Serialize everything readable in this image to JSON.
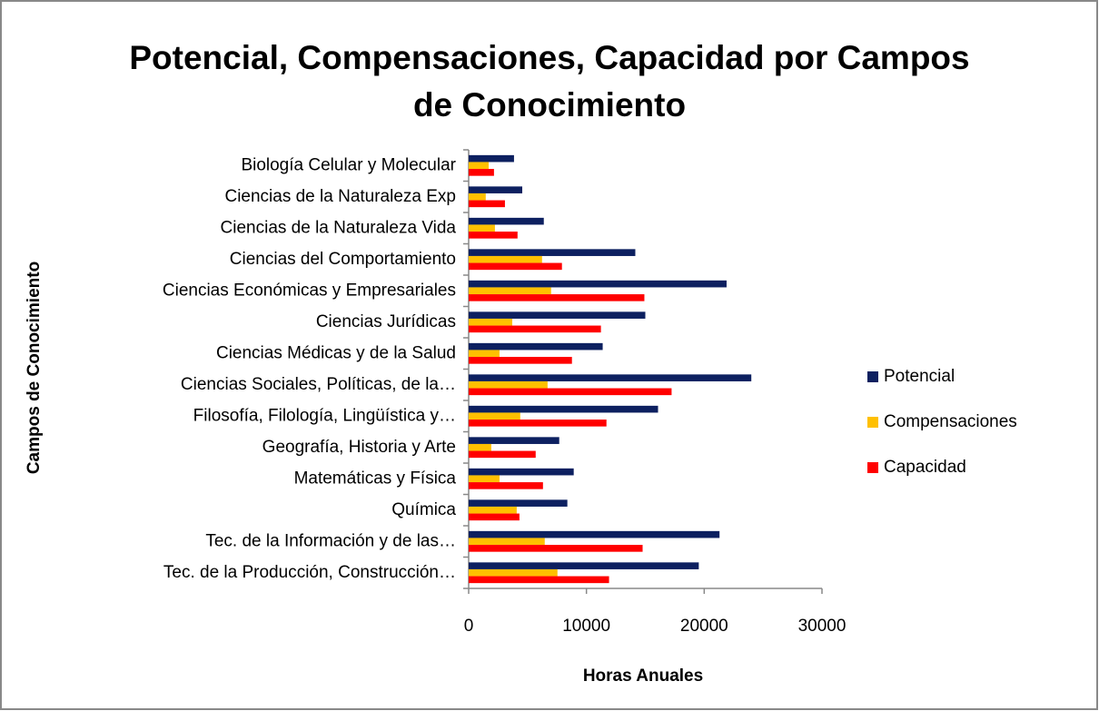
{
  "chart_data": {
    "type": "barh",
    "title": "Potencial, Compensaciones, Capacidad por Campos de Conocimiento",
    "xlabel": "Horas Anuales",
    "ylabel": "Campos de Conocimiento",
    "categories": [
      "Biología Celular y Molecular",
      "Ciencias de la Naturaleza Exp",
      "Ciencias de la Naturaleza Vida",
      "Ciencias del Comportamiento",
      "Ciencias Económicas y Empresariales",
      "Ciencias Jurídicas",
      "Ciencias Médicas y de la Salud",
      "Ciencias Sociales, Políticas, de la…",
      "Filosofía, Filología, Lingüística y…",
      "Geografía, Historia y Arte",
      "Matemáticas y Física",
      "Química",
      "Tec. de la Información y de las…",
      "Tec. de la Producción, Construcción…"
    ],
    "series": [
      {
        "name": "Potencial",
        "color": "#0d2060",
        "values": [
          3850,
          4550,
          6380,
          14150,
          21900,
          15000,
          11380,
          24000,
          16080,
          7690,
          8920,
          8380,
          21300,
          19540
        ]
      },
      {
        "name": "Compensaciones",
        "color": "#ffc000",
        "values": [
          1700,
          1450,
          2230,
          6230,
          7000,
          3700,
          2620,
          6700,
          4380,
          1920,
          2620,
          4080,
          6460,
          7540
        ]
      },
      {
        "name": "Capacidad",
        "color": "#ff0000",
        "values": [
          2150,
          3080,
          4150,
          7920,
          14920,
          11230,
          8770,
          17230,
          11700,
          5690,
          6310,
          4310,
          14770,
          11920
        ]
      }
    ],
    "xlim": [
      0,
      30000
    ],
    "xticks": [
      0,
      10000,
      20000,
      30000
    ],
    "legend": "right"
  }
}
